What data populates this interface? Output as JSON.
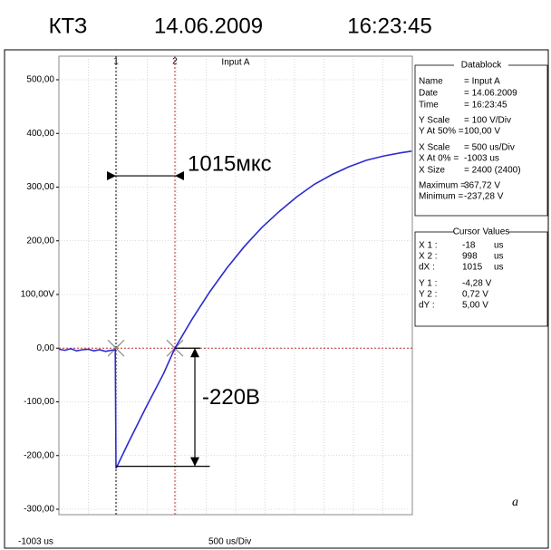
{
  "chart_data": {
    "type": "line",
    "header": [
      "КТЗ",
      "14.06.2009",
      "16:23:45"
    ],
    "title": "Input A",
    "x_left_label": "-1003 us",
    "x_scale_label": "500 us/Div",
    "corner_label": "a",
    "xlim": [
      -1003,
      5093
    ],
    "ylim": [
      -300,
      500
    ],
    "yticks": [
      {
        "value": 500,
        "label": "500,00"
      },
      {
        "value": 400,
        "label": "400,00"
      },
      {
        "value": 300,
        "label": "300,00"
      },
      {
        "value": 200,
        "label": "200,00"
      },
      {
        "value": 100,
        "label": "100,00V"
      },
      {
        "value": 0,
        "label": "0,00"
      },
      {
        "value": -100,
        "label": "-100,00"
      },
      {
        "value": -200,
        "label": "-200,00"
      },
      {
        "value": -300,
        "label": "-300,00"
      }
    ],
    "grid": true,
    "series": [
      {
        "name": "Input A",
        "color": "#2b2bd0",
        "x": [
          -1003,
          -900,
          -800,
          -700,
          -600,
          -500,
          -400,
          -300,
          -200,
          -100,
          -30,
          -18,
          200,
          500,
          800,
          998,
          1300,
          1600,
          1900,
          2200,
          2500,
          2800,
          3100,
          3400,
          3700,
          4000,
          4300,
          4600,
          4900,
          5080
        ],
        "values": [
          -2,
          -4,
          -1,
          -5,
          -3,
          -2,
          -5,
          -3,
          -6,
          -4,
          -3,
          -224,
          -175,
          -110,
          -48,
          0,
          55,
          105,
          150,
          190,
          225,
          255,
          282,
          305,
          323,
          338,
          350,
          358,
          364,
          367
        ]
      }
    ],
    "cursors": [
      {
        "label": "1",
        "x": -18,
        "y": 0,
        "color": "#000000"
      },
      {
        "label": "2",
        "x": 998,
        "y": 0,
        "color": "#c03030"
      }
    ],
    "annotations": {
      "dx_text": "1015мкс",
      "dy_text": "-220В",
      "dx_level": 321,
      "dy_x": 1342,
      "dy_bottom": -220,
      "dy_line_end": 1600
    },
    "datablock": {
      "title": "Datablock",
      "rows": [
        [
          "Name",
          "= Input A"
        ],
        [
          "Date",
          "= 14.06.2009"
        ],
        [
          "Time",
          "= 16:23:45"
        ],
        [
          "Y Scale",
          "=  100    V/Div"
        ],
        [
          "Y At 50% =",
          "100,00 V"
        ],
        [
          "X Scale",
          "=  500    us/Div"
        ],
        [
          "X At 0% =",
          "-1003    us"
        ],
        [
          "X Size",
          "= 2400 (2400)"
        ],
        [
          "Maximum =",
          "367,72 V"
        ],
        [
          "Minimum =",
          "-237,28 V"
        ]
      ]
    },
    "cursor_values": {
      "title": "Cursor Values",
      "rows": [
        [
          "X 1 :",
          "-18",
          "us"
        ],
        [
          "X 2 :",
          "998",
          "us"
        ],
        [
          "dX :",
          "1015",
          "us"
        ],
        [
          "Y 1 :",
          "-4,28 V",
          ""
        ],
        [
          "Y 2 :",
          "0,72 V",
          ""
        ],
        [
          "dY :",
          "5,00 V",
          ""
        ]
      ]
    }
  }
}
